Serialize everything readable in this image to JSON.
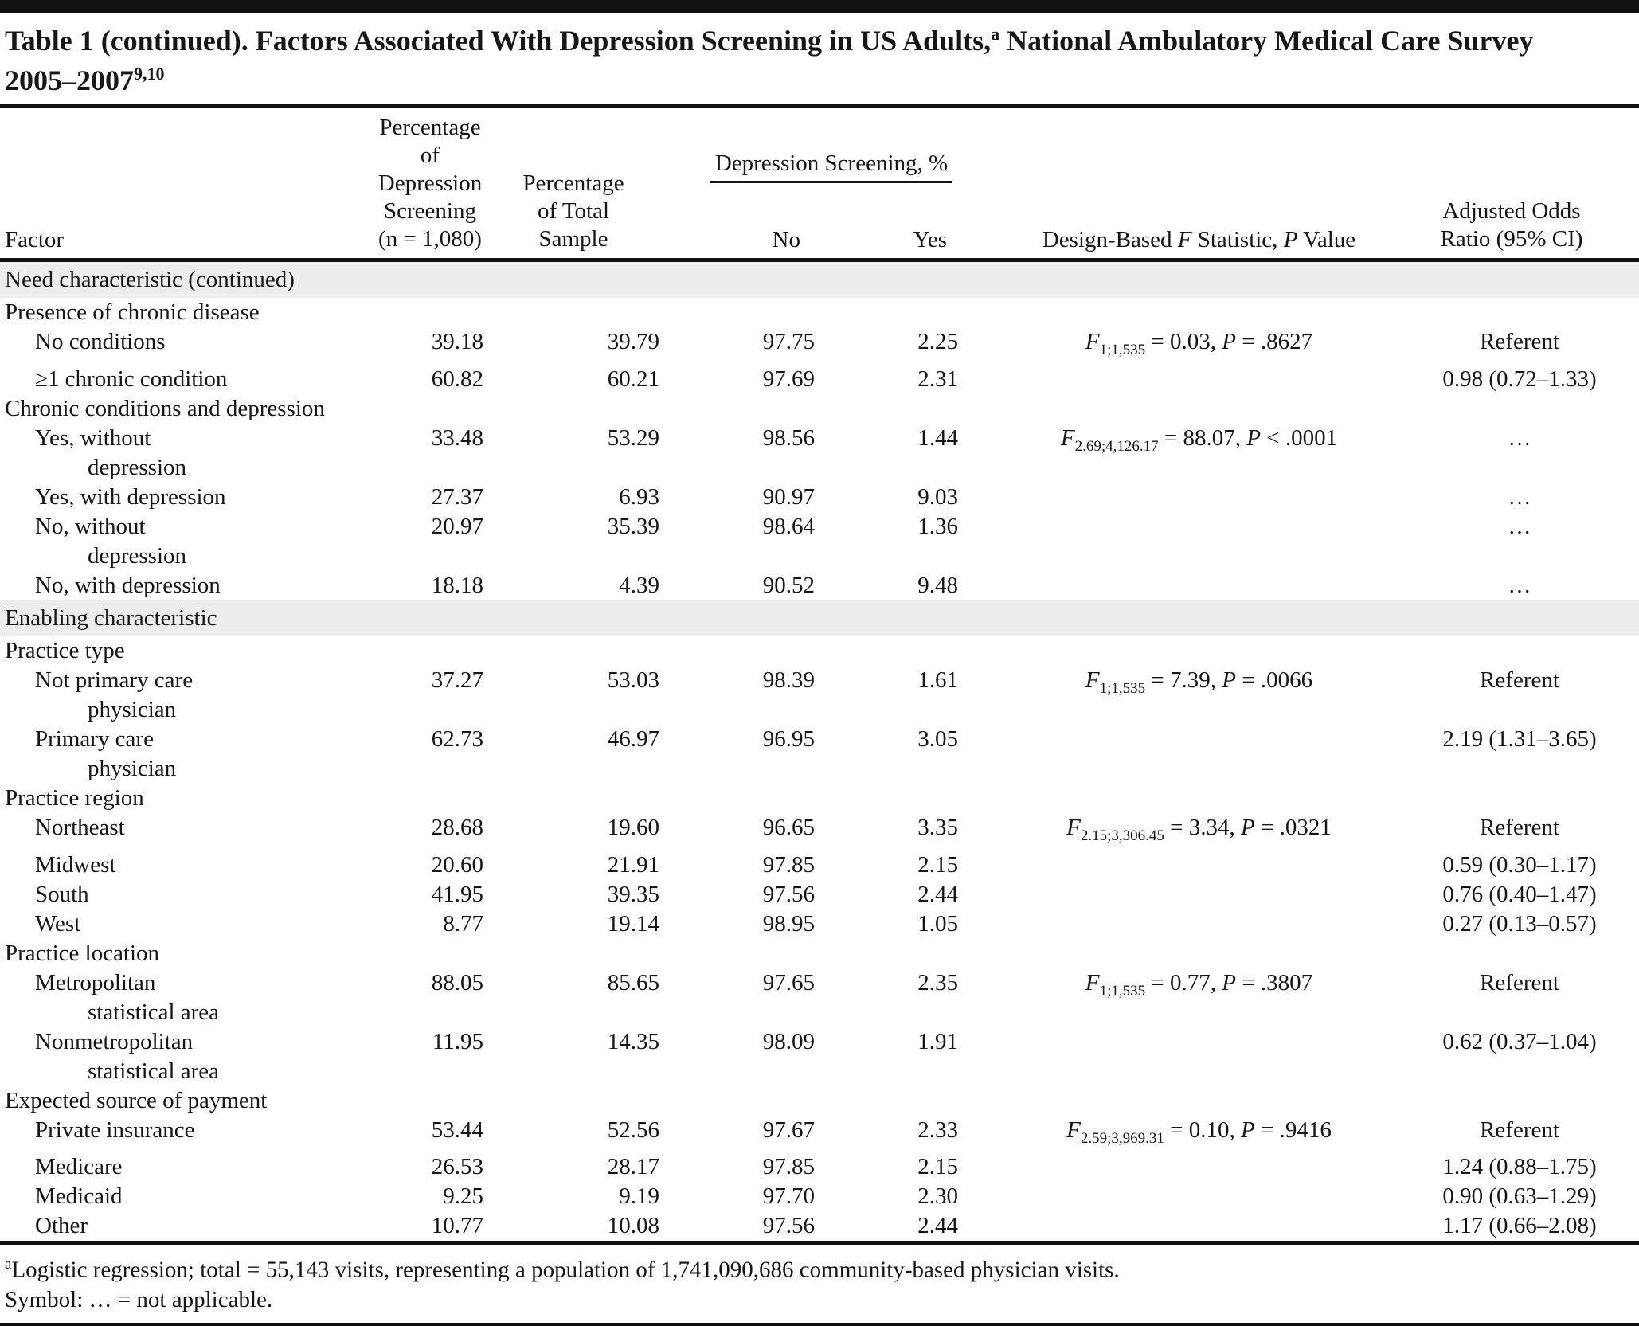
{
  "title": {
    "part1": "Table 1 (continued). Factors Associated With Depression Screening in US Adults,",
    "sup1": "a",
    "part2": " National Ambulatory Medical Care Survey",
    "part3": "2005–2007",
    "sup2": "9,10"
  },
  "header": {
    "factor": "Factor",
    "pct_screening_lines": [
      "Percentage of",
      "Depression",
      "Screening",
      "(n = 1,080)"
    ],
    "pct_total_lines": [
      "Percentage",
      "of Total",
      "Sample"
    ],
    "screening_group": "Depression Screening, %",
    "no": "No",
    "yes": "Yes",
    "fstat": {
      "pre": "Design-Based ",
      "f": "F",
      "mid": " Statistic, ",
      "p": "P",
      "tail": " Value"
    },
    "aor_lines": [
      "Adjusted Odds",
      "Ratio (95% CI)"
    ]
  },
  "table": {
    "rows": [
      {
        "type": "section",
        "label": "Need characteristic (continued)"
      },
      {
        "type": "group",
        "label": "Presence of chronic disease"
      },
      {
        "type": "data",
        "factor_lines": [
          "No conditions"
        ],
        "values": [
          "39.18",
          "39.79",
          "97.75",
          "2.25"
        ],
        "fstat": {
          "f": "F",
          "sub": "1;1,535",
          "mid": " = 0.03, ",
          "p": "P",
          "tail": " = .8627"
        },
        "aor": "Referent"
      },
      {
        "type": "data",
        "factor_lines": [
          "≥1 chronic condition"
        ],
        "values": [
          "60.82",
          "60.21",
          "97.69",
          "2.31"
        ],
        "fstat": null,
        "aor": "0.98 (0.72–1.33)"
      },
      {
        "type": "group",
        "label": "Chronic conditions and depression"
      },
      {
        "type": "data",
        "factor_lines": [
          "Yes, without",
          "depression"
        ],
        "values": [
          "33.48",
          "53.29",
          "98.56",
          "1.44"
        ],
        "fstat": {
          "f": "F",
          "sub": "2.69;4,126.17",
          "mid": " = 88.07, ",
          "p": "P",
          "tail": " < .0001"
        },
        "aor": "…"
      },
      {
        "type": "data",
        "factor_lines": [
          "Yes, with depression"
        ],
        "values": [
          "27.37",
          "6.93",
          "90.97",
          "9.03"
        ],
        "fstat": null,
        "aor": "…"
      },
      {
        "type": "data",
        "factor_lines": [
          "No, without",
          "depression"
        ],
        "values": [
          "20.97",
          "35.39",
          "98.64",
          "1.36"
        ],
        "fstat": null,
        "aor": "…"
      },
      {
        "type": "data",
        "factor_lines": [
          "No, with depression"
        ],
        "values": [
          "18.18",
          "4.39",
          "90.52",
          "9.48"
        ],
        "fstat": null,
        "aor": "…"
      },
      {
        "type": "section",
        "label": "Enabling characteristic"
      },
      {
        "type": "group",
        "label": "Practice type"
      },
      {
        "type": "data",
        "factor_lines": [
          "Not primary care",
          "physician"
        ],
        "values": [
          "37.27",
          "53.03",
          "98.39",
          "1.61"
        ],
        "fstat": {
          "f": "F",
          "sub": "1;1,535",
          "mid": " = 7.39, ",
          "p": "P",
          "tail": " = .0066"
        },
        "aor": "Referent"
      },
      {
        "type": "data",
        "factor_lines": [
          "Primary care",
          "physician"
        ],
        "values": [
          "62.73",
          "46.97",
          "96.95",
          "3.05"
        ],
        "fstat": null,
        "aor": "2.19 (1.31–3.65)"
      },
      {
        "type": "group",
        "label": "Practice region"
      },
      {
        "type": "data",
        "factor_lines": [
          "Northeast"
        ],
        "values": [
          "28.68",
          "19.60",
          "96.65",
          "3.35"
        ],
        "fstat": {
          "f": "F",
          "sub": "2.15;3,306.45",
          "mid": " = 3.34, ",
          "p": "P",
          "tail": " = .0321"
        },
        "aor": "Referent"
      },
      {
        "type": "data",
        "factor_lines": [
          "Midwest"
        ],
        "values": [
          "20.60",
          "21.91",
          "97.85",
          "2.15"
        ],
        "fstat": null,
        "aor": "0.59 (0.30–1.17)"
      },
      {
        "type": "data",
        "factor_lines": [
          "South"
        ],
        "values": [
          "41.95",
          "39.35",
          "97.56",
          "2.44"
        ],
        "fstat": null,
        "aor": "0.76 (0.40–1.47)"
      },
      {
        "type": "data",
        "factor_lines": [
          "West"
        ],
        "values": [
          "8.77",
          "19.14",
          "98.95",
          "1.05"
        ],
        "fstat": null,
        "aor": "0.27 (0.13–0.57)"
      },
      {
        "type": "group",
        "label": "Practice location"
      },
      {
        "type": "data",
        "factor_lines": [
          "Metropolitan",
          "statistical area"
        ],
        "values": [
          "88.05",
          "85.65",
          "97.65",
          "2.35"
        ],
        "fstat": {
          "f": "F",
          "sub": "1;1,535",
          "mid": " = 0.77, ",
          "p": "P",
          "tail": " = .3807"
        },
        "aor": "Referent"
      },
      {
        "type": "data",
        "factor_lines": [
          "Nonmetropolitan",
          "statistical area"
        ],
        "values": [
          "11.95",
          "14.35",
          "98.09",
          "1.91"
        ],
        "fstat": null,
        "aor": "0.62 (0.37–1.04)"
      },
      {
        "type": "group",
        "label": "Expected source of payment"
      },
      {
        "type": "data",
        "factor_lines": [
          "Private insurance"
        ],
        "values": [
          "53.44",
          "52.56",
          "97.67",
          "2.33"
        ],
        "fstat": {
          "f": "F",
          "sub": "2.59;3,969.31",
          "mid": " = 0.10, ",
          "p": "P",
          "tail": " = .9416"
        },
        "aor": "Referent"
      },
      {
        "type": "data",
        "factor_lines": [
          "Medicare"
        ],
        "values": [
          "26.53",
          "28.17",
          "97.85",
          "2.15"
        ],
        "fstat": null,
        "aor": "1.24 (0.88–1.75)"
      },
      {
        "type": "data",
        "factor_lines": [
          "Medicaid"
        ],
        "values": [
          "9.25",
          "9.19",
          "97.70",
          "2.30"
        ],
        "fstat": null,
        "aor": "0.90 (0.63–1.29)"
      },
      {
        "type": "data",
        "factor_lines": [
          "Other"
        ],
        "values": [
          "10.77",
          "10.08",
          "97.56",
          "2.44"
        ],
        "fstat": null,
        "aor": "1.17 (0.66–2.08)"
      }
    ]
  },
  "footnotes": {
    "sup": "a",
    "line1": "Logistic regression; total = 55,143 visits, representing a population of 1,741,090,686 community-based physician visits.",
    "line2": "Symbol: … = not applicable."
  },
  "colors": {
    "text": "#161616",
    "section_band": "#ededed",
    "rule": "#111111",
    "background": "#ffffff"
  }
}
